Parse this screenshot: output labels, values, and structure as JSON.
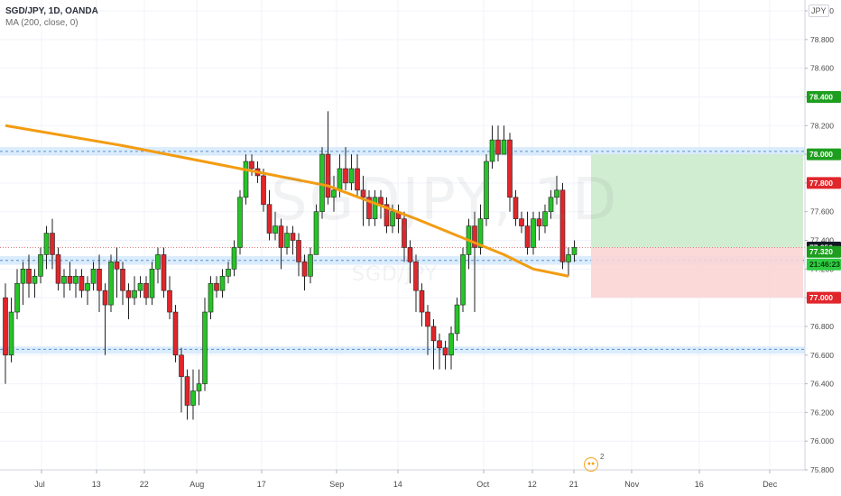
{
  "legend": {
    "symbol": "SGD/JPY, 1D, OANDA",
    "indicator": "MA (200, close, 0)"
  },
  "watermark": {
    "ticker": "SGDJPY, 1D",
    "pair": "SGD/JPY"
  },
  "currency_badge": "JPY",
  "event_badge": {
    "count": "2"
  },
  "colors": {
    "up": "#26c426",
    "down": "#e0262b",
    "ma": "#f39c12",
    "zone": "#cfe6fb",
    "zone_line": "#5b8fd1",
    "target_zone": "#ccebcc",
    "stop_zone": "#fbd5d5",
    "price_label": "#131722",
    "target_label": "#1e9e1e",
    "stop_label": "#e0262b"
  },
  "chart_data": {
    "type": "candlestick",
    "y_axis": {
      "min": 75.8,
      "max": 79.0,
      "ticks": [
        "79.000",
        "78.800",
        "78.600",
        "78.400",
        "78.200",
        "78.000",
        "77.800",
        "77.600",
        "77.400",
        "77.200",
        "77.000",
        "76.800",
        "76.600",
        "76.400",
        "76.200",
        "76.000",
        "75.800"
      ]
    },
    "x_axis": {
      "labels": [
        "Jul",
        "13",
        "22",
        "Aug",
        "17",
        "Sep",
        "14",
        "Oct",
        "12",
        "21",
        "Nov",
        "16",
        "Dec"
      ]
    },
    "price_labels": [
      {
        "text": "78.400",
        "value": 78.4,
        "kind": "target"
      },
      {
        "text": "78.000",
        "value": 78.0,
        "kind": "target"
      },
      {
        "text": "77.800",
        "value": 77.8,
        "kind": "stop"
      },
      {
        "text": "77.350",
        "value": 77.35,
        "kind": "price"
      },
      {
        "text": "77.320",
        "value": 77.32,
        "kind": "target"
      },
      {
        "text": "21:46:23",
        "value": 77.2,
        "kind": "countdown"
      },
      {
        "text": "77.000",
        "value": 77.0,
        "kind": "stop"
      }
    ],
    "zones": [
      {
        "from": 77.99,
        "to": 78.05,
        "line": 78.02
      },
      {
        "from": 77.23,
        "to": 77.29,
        "line": 77.26
      },
      {
        "from": 76.61,
        "to": 76.66,
        "line": 76.64
      }
    ],
    "position": {
      "entry": 77.35,
      "target": 78.0,
      "stop": 77.0
    },
    "candles": [
      [
        77.0,
        76.6,
        77.1,
        76.4
      ],
      [
        76.6,
        76.9,
        77.0,
        76.55
      ],
      [
        76.9,
        77.1,
        77.2,
        76.85
      ],
      [
        77.1,
        77.2,
        77.25,
        76.95
      ],
      [
        77.2,
        77.1,
        77.3,
        77.0
      ],
      [
        77.1,
        77.15,
        77.2,
        77.0
      ],
      [
        77.15,
        77.3,
        77.35,
        77.1
      ],
      [
        77.3,
        77.45,
        77.5,
        77.2
      ],
      [
        77.45,
        77.3,
        77.55,
        77.2
      ],
      [
        77.3,
        77.1,
        77.35,
        77.05
      ],
      [
        77.1,
        77.15,
        77.2,
        77.0
      ],
      [
        77.15,
        77.1,
        77.25,
        77.05
      ],
      [
        77.1,
        77.15,
        77.2,
        77.0
      ],
      [
        77.15,
        77.05,
        77.2,
        77.0
      ],
      [
        77.05,
        77.1,
        77.15,
        76.95
      ],
      [
        77.1,
        77.2,
        77.25,
        77.05
      ],
      [
        77.2,
        77.05,
        77.3,
        76.9
      ],
      [
        77.05,
        76.95,
        77.1,
        76.6
      ],
      [
        76.95,
        77.25,
        77.3,
        76.9
      ],
      [
        77.25,
        77.2,
        77.35,
        77.0
      ],
      [
        77.2,
        77.05,
        77.25,
        76.95
      ],
      [
        77.05,
        77.0,
        77.1,
        76.85
      ],
      [
        77.0,
        77.05,
        77.15,
        76.95
      ],
      [
        77.05,
        77.1,
        77.15,
        77.0
      ],
      [
        77.1,
        77.0,
        77.15,
        76.95
      ],
      [
        77.0,
        77.2,
        77.25,
        76.95
      ],
      [
        77.2,
        77.3,
        77.35,
        77.1
      ],
      [
        77.3,
        77.05,
        77.35,
        77.0
      ],
      [
        77.05,
        76.9,
        77.15,
        76.85
      ],
      [
        76.9,
        76.6,
        76.95,
        76.55
      ],
      [
        76.6,
        76.45,
        76.65,
        76.2
      ],
      [
        76.45,
        76.25,
        76.5,
        76.15
      ],
      [
        76.25,
        76.35,
        76.5,
        76.15
      ],
      [
        76.35,
        76.4,
        76.5,
        76.25
      ],
      [
        76.4,
        76.9,
        77.0,
        76.35
      ],
      [
        76.9,
        77.1,
        77.15,
        76.85
      ],
      [
        77.1,
        77.05,
        77.15,
        77.0
      ],
      [
        77.05,
        77.15,
        77.2,
        77.0
      ],
      [
        77.15,
        77.2,
        77.25,
        77.1
      ],
      [
        77.2,
        77.35,
        77.4,
        77.15
      ],
      [
        77.35,
        77.7,
        77.75,
        77.3
      ],
      [
        77.7,
        77.95,
        78.0,
        77.65
      ],
      [
        77.95,
        77.9,
        78.0,
        77.85
      ],
      [
        77.9,
        77.85,
        77.95,
        77.8
      ],
      [
        77.85,
        77.65,
        77.9,
        77.6
      ],
      [
        77.65,
        77.45,
        77.75,
        77.4
      ],
      [
        77.45,
        77.5,
        77.6,
        77.4
      ],
      [
        77.5,
        77.35,
        77.55,
        77.2
      ],
      [
        77.35,
        77.45,
        77.5,
        77.3
      ],
      [
        77.45,
        77.4,
        77.5,
        77.3
      ],
      [
        77.4,
        77.25,
        77.45,
        77.15
      ],
      [
        77.25,
        77.15,
        77.3,
        77.05
      ],
      [
        77.15,
        77.3,
        77.35,
        77.1
      ],
      [
        77.3,
        77.6,
        77.65,
        77.3
      ],
      [
        77.6,
        78.0,
        78.05,
        77.55
      ],
      [
        78.0,
        77.7,
        78.3,
        77.65
      ],
      [
        77.7,
        77.75,
        77.85,
        77.6
      ],
      [
        77.75,
        77.9,
        78.0,
        77.7
      ],
      [
        77.9,
        77.8,
        78.05,
        77.75
      ],
      [
        77.8,
        77.9,
        78.0,
        77.75
      ],
      [
        77.9,
        77.75,
        78.0,
        77.7
      ],
      [
        77.75,
        77.7,
        77.85,
        77.5
      ],
      [
        77.7,
        77.55,
        77.75,
        77.5
      ],
      [
        77.55,
        77.7,
        77.75,
        77.5
      ],
      [
        77.7,
        77.65,
        77.75,
        77.55
      ],
      [
        77.65,
        77.5,
        77.7,
        77.45
      ],
      [
        77.5,
        77.6,
        77.65,
        77.45
      ],
      [
        77.6,
        77.55,
        77.65,
        77.45
      ],
      [
        77.55,
        77.35,
        77.6,
        77.25
      ],
      [
        77.35,
        77.25,
        77.4,
        77.1
      ],
      [
        77.25,
        77.05,
        77.3,
        76.9
      ],
      [
        77.05,
        76.9,
        77.1,
        76.8
      ],
      [
        76.9,
        76.8,
        76.95,
        76.6
      ],
      [
        76.8,
        76.7,
        76.85,
        76.5
      ],
      [
        76.7,
        76.65,
        76.75,
        76.5
      ],
      [
        76.65,
        76.6,
        76.7,
        76.5
      ],
      [
        76.6,
        76.75,
        76.8,
        76.5
      ],
      [
        76.75,
        76.95,
        77.0,
        76.7
      ],
      [
        76.95,
        77.3,
        77.35,
        76.9
      ],
      [
        77.3,
        77.5,
        77.55,
        77.2
      ],
      [
        77.5,
        77.35,
        77.6,
        76.9
      ],
      [
        77.35,
        77.55,
        77.65,
        77.3
      ],
      [
        77.55,
        77.95,
        78.0,
        77.5
      ],
      [
        77.95,
        78.1,
        78.2,
        77.9
      ],
      [
        78.1,
        78.0,
        78.2,
        77.95
      ],
      [
        78.0,
        78.1,
        78.2,
        78.0
      ],
      [
        78.1,
        77.7,
        78.15,
        77.6
      ],
      [
        77.7,
        77.55,
        77.75,
        77.5
      ],
      [
        77.55,
        77.5,
        77.6,
        77.45
      ],
      [
        77.5,
        77.35,
        77.6,
        77.3
      ],
      [
        77.35,
        77.55,
        77.6,
        77.3
      ],
      [
        77.55,
        77.5,
        77.6,
        77.4
      ],
      [
        77.5,
        77.6,
        77.65,
        77.45
      ],
      [
        77.6,
        77.7,
        77.75,
        77.55
      ],
      [
        77.7,
        77.75,
        77.85,
        77.65
      ],
      [
        77.75,
        77.25,
        77.8,
        77.2
      ],
      [
        77.25,
        77.3,
        77.35,
        77.15
      ],
      [
        77.3,
        77.35,
        77.4,
        77.25
      ]
    ],
    "ma_line": [
      [
        0,
        78.2
      ],
      [
        20,
        78.06
      ],
      [
        40,
        77.9
      ],
      [
        55,
        77.78
      ],
      [
        70,
        77.55
      ],
      [
        85,
        77.3
      ],
      [
        90,
        77.2
      ],
      [
        96,
        77.15
      ]
    ]
  }
}
